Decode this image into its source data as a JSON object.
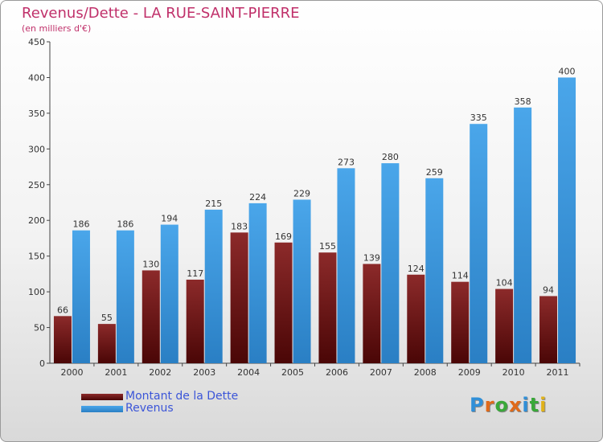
{
  "header": {
    "title": "Revenus/Dette - LA RUE-SAINT-PIERRE",
    "subtitle": "(en milliers d'€)"
  },
  "colors": {
    "dette": "#7a1414",
    "revenus": "#3d9ae0",
    "title": "#c0306a",
    "legend_text": "#3b55d8"
  },
  "legend": {
    "dette_label": "Montant de la Dette",
    "revenus_label": "Revenus"
  },
  "logo": {
    "text": "Proxiti"
  },
  "chart_data": {
    "type": "bar",
    "title": "Revenus/Dette - LA RUE-SAINT-PIERRE",
    "ylabel": "(en milliers d'€)",
    "ylim": [
      0,
      450
    ],
    "yticks": [
      0,
      50,
      100,
      150,
      200,
      250,
      300,
      350,
      400,
      450
    ],
    "grid": false,
    "legend_position": "bottom-left",
    "categories": [
      "2000",
      "2001",
      "2002",
      "2003",
      "2004",
      "2005",
      "2006",
      "2007",
      "2008",
      "2009",
      "2010",
      "2011"
    ],
    "series": [
      {
        "name": "Montant de la Dette",
        "values": [
          66,
          55,
          130,
          117,
          183,
          169,
          155,
          139,
          124,
          114,
          104,
          94
        ]
      },
      {
        "name": "Revenus",
        "values": [
          186,
          186,
          194,
          215,
          224,
          229,
          273,
          280,
          259,
          335,
          358,
          400
        ]
      }
    ]
  }
}
